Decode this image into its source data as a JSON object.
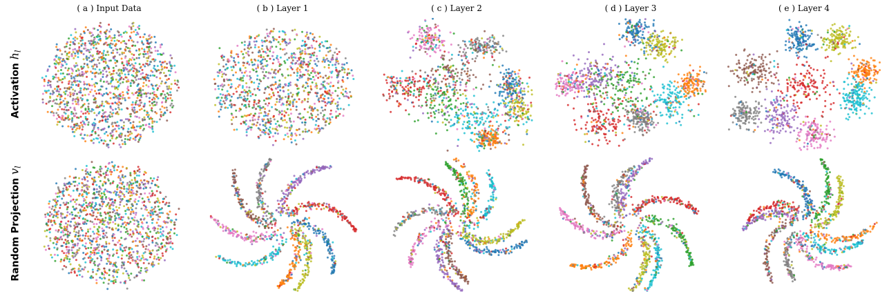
{
  "palette": [
    "#1f77b4",
    "#ff7f0e",
    "#2ca02c",
    "#d62728",
    "#9467bd",
    "#8c564b",
    "#e377c2",
    "#7f7f7f",
    "#bcbd22",
    "#17becf"
  ],
  "row_labels": [
    {
      "text": "Activation ",
      "symbol": "h",
      "sub": "l"
    },
    {
      "text": "Random Projection ",
      "symbol": "v",
      "sub": "l"
    }
  ],
  "chart_data": {
    "type": "scatter",
    "columns": [
      "( a ) Input Data",
      "( b ) Layer 1",
      "( c ) Layer 2",
      "( d ) Layer 3",
      "( e ) Layer 4"
    ],
    "rows": [
      "Activation h_l",
      "Random Projection v_l"
    ],
    "classes": 10,
    "axes": "off",
    "panels": [
      {
        "row": 0,
        "col": 0,
        "shape": "blob",
        "structure": "mixed"
      },
      {
        "row": 0,
        "col": 1,
        "shape": "blob",
        "structure": "mixed"
      },
      {
        "row": 0,
        "col": 2,
        "shape": "clusters",
        "structure": "partially separated"
      },
      {
        "row": 0,
        "col": 3,
        "shape": "clusters",
        "structure": "separated"
      },
      {
        "row": 0,
        "col": 4,
        "shape": "ring of clusters",
        "structure": "well separated"
      },
      {
        "row": 1,
        "col": 0,
        "shape": "blob",
        "structure": "mixed"
      },
      {
        "row": 1,
        "col": 1,
        "shape": "star arms",
        "structure": "arms"
      },
      {
        "row": 1,
        "col": 2,
        "shape": "star arms",
        "structure": "arms"
      },
      {
        "row": 1,
        "col": 3,
        "shape": "star arms",
        "structure": "arms"
      },
      {
        "row": 1,
        "col": 4,
        "shape": "star arms",
        "structure": "arms"
      }
    ]
  }
}
